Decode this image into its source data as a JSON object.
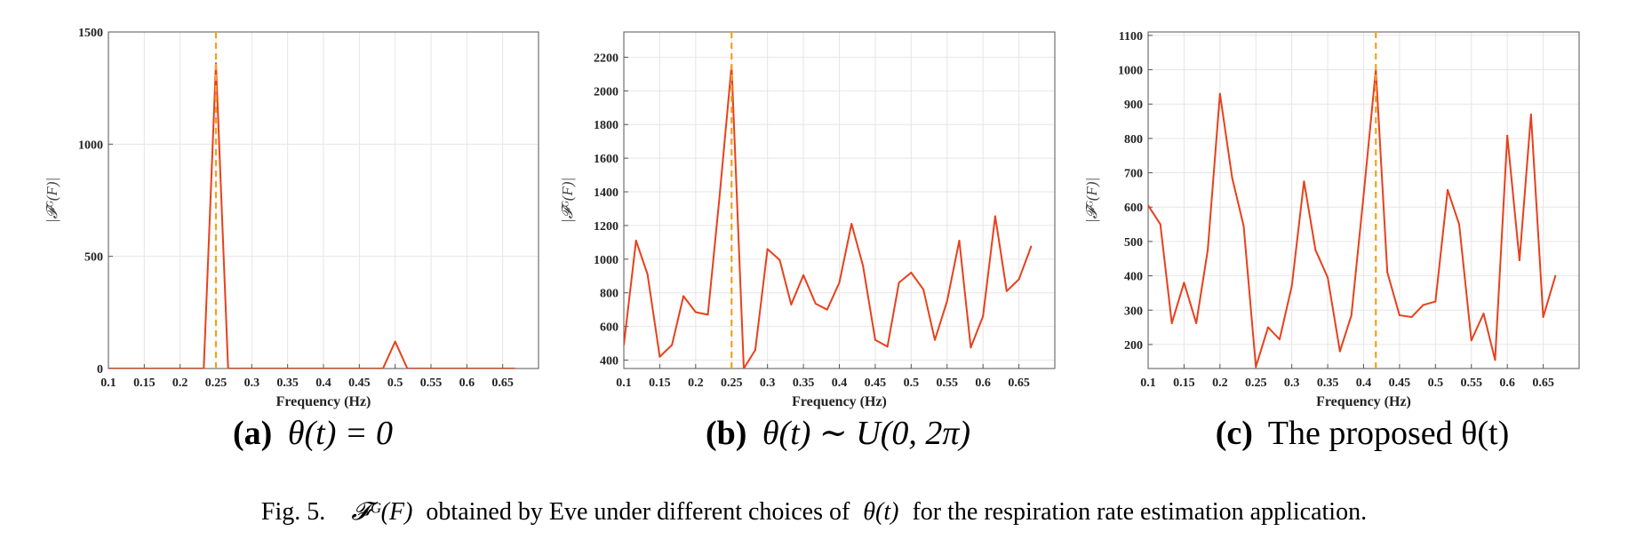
{
  "colors": {
    "line": "#e8401c",
    "marker": "#f2a31b",
    "grid": "#e6e6e6",
    "axis": "#555555"
  },
  "chart_data": [
    {
      "type": "line",
      "panel_label": "(a)",
      "panel_title": "θ(t) = 0",
      "xlabel": "Frequency (Hz)",
      "ylabel": "|𝓕ᴳ(F)|",
      "xlim": [
        0.1,
        0.7
      ],
      "ylim": [
        0,
        1500
      ],
      "xticks": [
        0.1,
        0.15,
        0.2,
        0.25,
        0.3,
        0.35,
        0.4,
        0.45,
        0.5,
        0.55,
        0.6,
        0.65
      ],
      "xtick_labels": [
        "0.1",
        "0.15",
        "0.2",
        "0.25",
        "0.3",
        "0.35",
        "0.4",
        "0.45",
        "0.5",
        "0.55",
        "0.6",
        "0.65"
      ],
      "yticks": [
        0,
        500,
        1000,
        1500
      ],
      "ytick_labels": [
        "0",
        "500",
        "1000",
        "1500"
      ],
      "grid": true,
      "marker_x": 0.25,
      "x": [
        0.1,
        0.117,
        0.133,
        0.15,
        0.167,
        0.183,
        0.2,
        0.217,
        0.233,
        0.25,
        0.267,
        0.283,
        0.3,
        0.317,
        0.333,
        0.35,
        0.367,
        0.383,
        0.4,
        0.417,
        0.433,
        0.45,
        0.467,
        0.483,
        0.5,
        0.517,
        0.533,
        0.55,
        0.567,
        0.583,
        0.6,
        0.617,
        0.633,
        0.65,
        0.667
      ],
      "y": [
        0,
        0,
        0,
        0,
        0,
        0,
        0,
        0,
        0,
        1360,
        0,
        0,
        0,
        0,
        0,
        0,
        0,
        0,
        0,
        0,
        0,
        0,
        0,
        0,
        120,
        0,
        0,
        0,
        0,
        0,
        0,
        0,
        0,
        0,
        0
      ]
    },
    {
      "type": "line",
      "panel_label": "(b)",
      "panel_title": "θ(t) ∼ U(0, 2π)",
      "xlabel": "Frequency (Hz)",
      "ylabel": "|𝓕ᴳ(F)|",
      "xlim": [
        0.1,
        0.7
      ],
      "ylim": [
        350,
        2350
      ],
      "xticks": [
        0.1,
        0.15,
        0.2,
        0.25,
        0.3,
        0.35,
        0.4,
        0.45,
        0.5,
        0.55,
        0.6,
        0.65
      ],
      "xtick_labels": [
        "0.1",
        "0.15",
        "0.2",
        "0.25",
        "0.3",
        "0.35",
        "0.4",
        "0.45",
        "0.5",
        "0.55",
        "0.6",
        "0.65"
      ],
      "yticks": [
        400,
        600,
        800,
        1000,
        1200,
        1400,
        1600,
        1800,
        2000,
        2200
      ],
      "ytick_labels": [
        "400",
        "600",
        "800",
        "1000",
        "1200",
        "1400",
        "1600",
        "1800",
        "2000",
        "2200"
      ],
      "grid": true,
      "marker_x": 0.25,
      "x": [
        0.1,
        0.117,
        0.133,
        0.15,
        0.167,
        0.183,
        0.2,
        0.217,
        0.233,
        0.25,
        0.267,
        0.283,
        0.3,
        0.317,
        0.333,
        0.35,
        0.367,
        0.383,
        0.4,
        0.417,
        0.433,
        0.45,
        0.467,
        0.483,
        0.5,
        0.517,
        0.533,
        0.55,
        0.567,
        0.583,
        0.6,
        0.617,
        0.633,
        0.65,
        0.667
      ],
      "y": [
        490,
        1110,
        910,
        420,
        490,
        780,
        685,
        670,
        1360,
        2150,
        350,
        460,
        1060,
        995,
        730,
        905,
        735,
        700,
        860,
        1210,
        960,
        520,
        480,
        860,
        920,
        820,
        520,
        750,
        1110,
        475,
        660,
        1255,
        810,
        880,
        1075
      ]
    },
    {
      "type": "line",
      "panel_label": "(c)",
      "panel_title": "The proposed θ(t)",
      "xlabel": "Frequency (Hz)",
      "ylabel": "|𝓕ᴳ(F)|",
      "xlim": [
        0.1,
        0.7
      ],
      "ylim": [
        130,
        1110
      ],
      "xticks": [
        0.1,
        0.15,
        0.2,
        0.25,
        0.3,
        0.35,
        0.4,
        0.45,
        0.5,
        0.55,
        0.6,
        0.65
      ],
      "xtick_labels": [
        "0.1",
        "0.15",
        "0.2",
        "0.25",
        "0.3",
        "0.35",
        "0.4",
        "0.45",
        "0.5",
        "0.55",
        "0.6",
        "0.65"
      ],
      "yticks": [
        200,
        300,
        400,
        500,
        600,
        700,
        800,
        900,
        1000,
        1100
      ],
      "ytick_labels": [
        "200",
        "300",
        "400",
        "500",
        "600",
        "700",
        "800",
        "900",
        "1000",
        "1100"
      ],
      "grid": true,
      "marker_x": 0.417,
      "x": [
        0.1,
        0.117,
        0.133,
        0.15,
        0.167,
        0.183,
        0.2,
        0.217,
        0.233,
        0.25,
        0.267,
        0.283,
        0.3,
        0.317,
        0.333,
        0.35,
        0.367,
        0.383,
        0.4,
        0.417,
        0.433,
        0.45,
        0.467,
        0.483,
        0.5,
        0.517,
        0.533,
        0.55,
        0.567,
        0.583,
        0.6,
        0.617,
        0.633,
        0.65,
        0.667
      ],
      "y": [
        605,
        550,
        262,
        380,
        262,
        475,
        930,
        685,
        545,
        135,
        250,
        215,
        370,
        675,
        475,
        395,
        180,
        285,
        635,
        1000,
        410,
        285,
        280,
        315,
        325,
        650,
        550,
        212,
        290,
        155,
        808,
        445,
        870,
        280,
        400
      ]
    }
  ],
  "caption": {
    "label": "Fig. 5.",
    "math": "𝓕ᴳ(F)",
    "text_1": "obtained by Eve under different choices of",
    "theta": "θ(t)",
    "text_2": "for the respiration rate estimation application."
  }
}
